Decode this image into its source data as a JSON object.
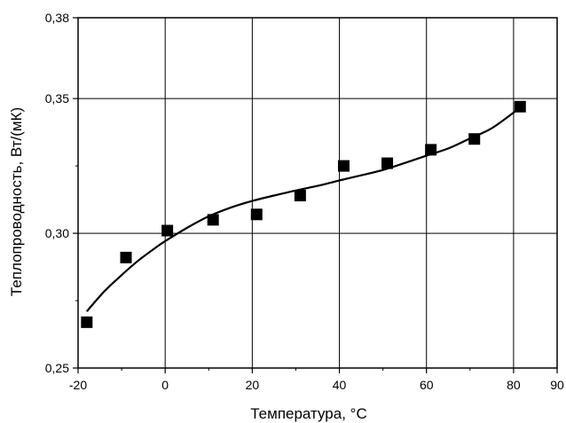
{
  "chart_data": {
    "type": "scatter",
    "xlabel": "Температура, °C",
    "ylabel": "Теплопроводность, Вт/(мК)",
    "xlim": [
      -20,
      90
    ],
    "ylim": [
      0.25,
      0.38
    ],
    "x_ticks": [
      {
        "value": -20,
        "label": "-20"
      },
      {
        "value": 0,
        "label": "0"
      },
      {
        "value": 20,
        "label": "20"
      },
      {
        "value": 40,
        "label": "40"
      },
      {
        "value": 60,
        "label": "60"
      },
      {
        "value": 80,
        "label": "80"
      },
      {
        "value": 90,
        "label": "90"
      }
    ],
    "y_ticks": [
      {
        "value": 0.25,
        "label": "0,25"
      },
      {
        "value": 0.3,
        "label": "0,30"
      },
      {
        "value": 0.35,
        "label": "0,35"
      },
      {
        "value": 0.38,
        "label": "0,38"
      }
    ],
    "x_gridlines": [
      0,
      20,
      40,
      60,
      80
    ],
    "y_gridlines": [
      0.3,
      0.35
    ],
    "grid": true,
    "marker": "square",
    "points": [
      {
        "x": -18,
        "y": 0.267
      },
      {
        "x": -9,
        "y": 0.291
      },
      {
        "x": 0.5,
        "y": 0.301
      },
      {
        "x": 11,
        "y": 0.305
      },
      {
        "x": 21,
        "y": 0.307
      },
      {
        "x": 31,
        "y": 0.314
      },
      {
        "x": 41,
        "y": 0.325
      },
      {
        "x": 51,
        "y": 0.326
      },
      {
        "x": 61,
        "y": 0.331
      },
      {
        "x": 71,
        "y": 0.335
      },
      {
        "x": 81.5,
        "y": 0.347
      }
    ],
    "fit_curve": {
      "x": [
        -18,
        -14,
        -10,
        -6,
        -2,
        0,
        5,
        10,
        15,
        20,
        25,
        30,
        35,
        40,
        45,
        50,
        55,
        60,
        65,
        70,
        75,
        81
      ],
      "y": [
        0.271,
        0.2784,
        0.2845,
        0.2901,
        0.2949,
        0.2971,
        0.302,
        0.3063,
        0.3095,
        0.312,
        0.314,
        0.3159,
        0.3176,
        0.3196,
        0.3215,
        0.3235,
        0.3261,
        0.3288,
        0.3315,
        0.3352,
        0.339,
        0.346
      ]
    },
    "colors": {
      "axis": "#000000",
      "grid": "#000000",
      "marker": "#000000",
      "curve": "#000000"
    }
  }
}
